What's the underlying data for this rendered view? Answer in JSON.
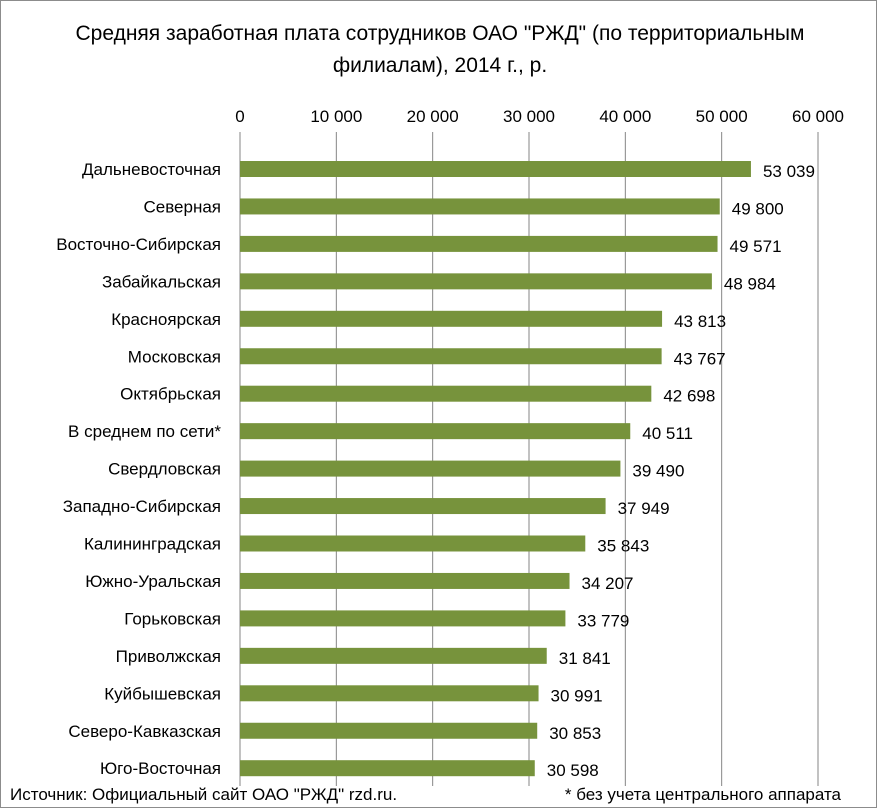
{
  "chart_data": {
    "type": "bar",
    "orientation": "horizontal",
    "title": "Средняя заработная плата сотрудников ОАО \"РЖД\" (по территориальным филиалам), 2014 г.,  р.",
    "categories": [
      "Дальневосточная",
      "Северная",
      "Восточно-Сибирская",
      "Забайкальская",
      "Красноярская",
      "Московская",
      "Октябрьская",
      "В среднем по сети*",
      "Свердловская",
      "Западно-Сибирская",
      "Калининградская",
      "Южно-Уральская",
      "Горьковская",
      "Приволжская",
      "Куйбышевская",
      "Северо-Кавказская",
      "Юго-Восточная"
    ],
    "values": [
      53039,
      49800,
      49571,
      48984,
      43813,
      43767,
      42698,
      40511,
      39490,
      37949,
      35843,
      34207,
      33779,
      31841,
      30991,
      30853,
      30598
    ],
    "data_labels": [
      "53 039",
      "49 800",
      "49 571",
      "48 984",
      "43 813",
      "43 767",
      "42 698",
      "40 511",
      "39 490",
      "37 949",
      "35 843",
      "34 207",
      "33 779",
      "31 841",
      "30 991",
      "30 853",
      "30 598"
    ],
    "xlim": [
      0,
      60000
    ],
    "ticks": [
      0,
      10000,
      20000,
      30000,
      40000,
      50000,
      60000
    ],
    "tick_labels": [
      "0",
      "10 000",
      "20 000",
      "30 000",
      "40 000",
      "50 000",
      "60 000"
    ],
    "axis_position": "top",
    "grid": true,
    "bar_color": "#77933c",
    "grid_color": "#868686"
  },
  "footer": {
    "source": "Источник: Официальный сайт ОАО \"РЖД\" rzd.ru.",
    "note": "* без учета центрального аппарата"
  }
}
